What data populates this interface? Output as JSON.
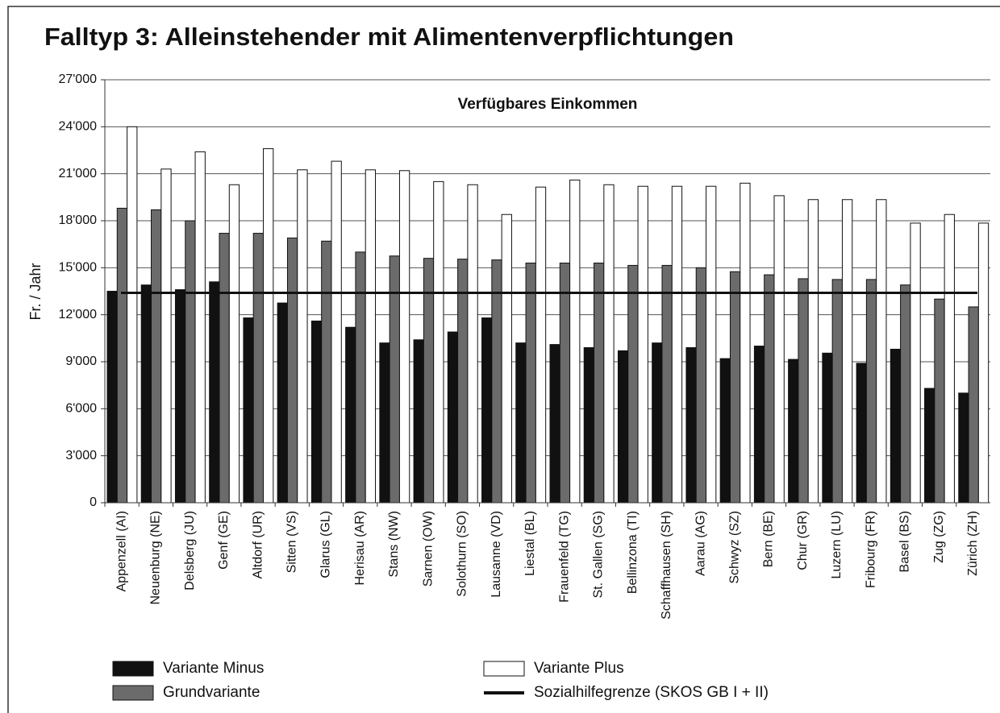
{
  "chart_data": {
    "type": "bar",
    "title": "Falltyp 3: Alleinstehender mit Alimentenverpflichtungen",
    "subtitle": "Verfügbares Einkommen",
    "y_label": "Fr. / Jahr",
    "categories": [
      "Appenzell (AI)",
      "Neuenburg (NE)",
      "Delsberg (JU)",
      "Genf (GE)",
      "Altdorf (UR)",
      "Sitten (VS)",
      "Glarus (GL)",
      "Herisau (AR)",
      "Stans (NW)",
      "Sarnen (OW)",
      "Solothurn (SO)",
      "Lausanne (VD)",
      "Liestal (BL)",
      "Frauenfeld (TG)",
      "St. Gallen (SG)",
      "Bellinzona (TI)",
      "Schaffhausen (SH)",
      "Aarau (AG)",
      "Schwyz (SZ)",
      "Bern (BE)",
      "Chur (GR)",
      "Luzern (LU)",
      "Fribourg (FR)",
      "Basel (BS)",
      "Zug (ZG)",
      "Zürich (ZH)"
    ],
    "series": [
      {
        "name": "Variante Minus",
        "color": "#111111",
        "values": [
          13500,
          13900,
          13600,
          14100,
          11800,
          12750,
          11600,
          11200,
          10200,
          10400,
          10900,
          11800,
          10200,
          10100,
          9900,
          9700,
          10200,
          9900,
          9200,
          10000,
          9150,
          9550,
          8900,
          9800,
          7300,
          7000
        ]
      },
      {
        "name": "Grundvariante",
        "color": "#6b6b6b",
        "values": [
          18800,
          18700,
          18000,
          17200,
          17200,
          16900,
          16700,
          16000,
          15750,
          15600,
          15550,
          15500,
          15300,
          15300,
          15300,
          15150,
          15150,
          15000,
          14750,
          14550,
          14300,
          14250,
          14250,
          13900,
          13000,
          12500
        ]
      },
      {
        "name": "Variante Plus",
        "color": "#ffffff",
        "values": [
          24000,
          21300,
          22400,
          20300,
          22600,
          21250,
          21800,
          21250,
          21200,
          20500,
          20300,
          18400,
          20150,
          20600,
          20300,
          20200,
          20200,
          20200,
          20400,
          19600,
          19350,
          19350,
          19350,
          17850,
          18400,
          17850
        ]
      }
    ],
    "reference_line": {
      "name": "Sozialhilfegrenze (SKOS GB I + II)",
      "value": 13400,
      "color": "#111111"
    },
    "ylim": [
      0,
      27000
    ],
    "yticks": [
      0,
      {
        "value": 3000,
        "label": "3'000"
      },
      {
        "value": 6000,
        "label": "6'000"
      },
      {
        "value": 9000,
        "label": "9'000"
      },
      {
        "value": 12000,
        "label": "12'000"
      },
      {
        "value": 15000,
        "label": "15'000"
      },
      {
        "value": 18000,
        "label": "18'000"
      },
      {
        "value": 21000,
        "label": "21'000"
      },
      {
        "value": 24000,
        "label": "24'000"
      },
      {
        "value": 27000,
        "label": "27'000"
      }
    ],
    "grid": true,
    "legend": "bottom"
  }
}
